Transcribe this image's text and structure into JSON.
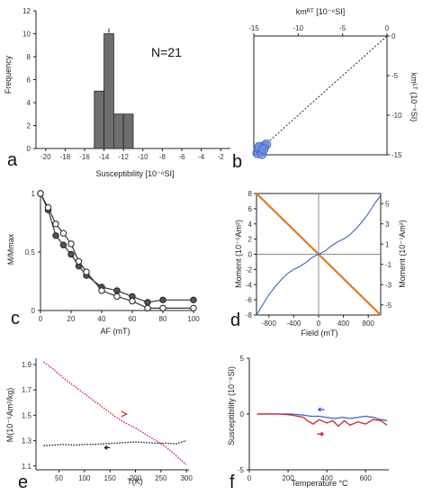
{
  "colors": {
    "axis": "#222222",
    "bar": "#6e6e6e",
    "diag": "#222222",
    "blue": "#3a62c9",
    "blue_light": "#6f8fe0",
    "orange": "#e07a1f",
    "red": "#c8262a",
    "black": "#1a1a1a",
    "grey_line": "#8a8a8a"
  },
  "chart_data": [
    {
      "panel": "a",
      "type": "bar",
      "annotation": "N=21",
      "xlabel": "Susceptibility [10⁻⁶SI]",
      "ylabel": "Frequency",
      "xlim": [
        -21,
        -1
      ],
      "ylim": [
        0,
        12
      ],
      "xticks": [
        "-20",
        "-18",
        "-16",
        "-14",
        "-12",
        "-10",
        "-8",
        "-6",
        "-4",
        "-2"
      ],
      "yticks": [
        "0",
        "2",
        "4",
        "6",
        "8",
        "10",
        "12"
      ],
      "bins": [
        {
          "x0": -15,
          "x1": -14,
          "value": 5
        },
        {
          "x0": -14,
          "x1": -13,
          "value": 10
        },
        {
          "x0": -13,
          "x1": -12,
          "value": 3
        },
        {
          "x0": -12,
          "x1": -11,
          "value": 3
        }
      ],
      "mean_marker": -13.5
    },
    {
      "panel": "b",
      "type": "scatter",
      "xlabel": "kmᴿᵀ [10⁻⁶SI]",
      "ylabel": "kmᴸᵀ (10⁻⁶SI)",
      "xlim": [
        -15,
        0
      ],
      "ylim": [
        -15,
        0
      ],
      "xticks": [
        "-15",
        "-10",
        "-5",
        "0"
      ],
      "yticks": [
        "0",
        "-5",
        "-10",
        "-15"
      ],
      "points": [
        [
          -14.6,
          -14.8
        ],
        [
          -14.3,
          -14.4
        ],
        [
          -14.0,
          -14.1
        ],
        [
          -13.8,
          -13.9
        ],
        [
          -14.2,
          -14.6
        ],
        [
          -14.5,
          -14.2
        ],
        [
          -13.6,
          -13.7
        ],
        [
          -14.1,
          -14.9
        ],
        [
          -14.4,
          -14.0
        ],
        [
          -13.9,
          -14.3
        ]
      ],
      "reference": "1:1 line"
    },
    {
      "panel": "c",
      "type": "line",
      "xlabel": "AF (mT)",
      "ylabel": "M/Mmax",
      "xlim": [
        0,
        100
      ],
      "ylim": [
        0,
        1
      ],
      "xticks": [
        "0",
        "20",
        "40",
        "60",
        "80",
        "100"
      ],
      "yticks": [
        "0",
        "0.5",
        "1"
      ],
      "series": [
        {
          "marker": "filled",
          "x": [
            0,
            5,
            10,
            15,
            20,
            25,
            30,
            40,
            50,
            60,
            70,
            80,
            100
          ],
          "y": [
            1.0,
            0.86,
            0.64,
            0.56,
            0.48,
            0.38,
            0.3,
            0.2,
            0.17,
            0.12,
            0.07,
            0.09,
            0.09
          ]
        },
        {
          "marker": "open",
          "x": [
            0,
            5,
            10,
            15,
            20,
            25,
            30,
            40,
            50,
            60,
            70,
            80,
            100
          ],
          "y": [
            1.0,
            0.88,
            0.74,
            0.66,
            0.57,
            0.42,
            0.33,
            0.17,
            0.12,
            0.08,
            0.02,
            0.02,
            0.02
          ]
        }
      ]
    },
    {
      "panel": "d",
      "type": "line",
      "xlabel": "Field (mT)",
      "ylabel_left": "Moment (10⁻⁵Am²)",
      "ylabel_right": "Moment (10⁻⁷Am²)",
      "xlim": [
        -1000,
        1000
      ],
      "ylim_left": [
        -8,
        8
      ],
      "ylim_right": [
        -6,
        6
      ],
      "xticks": [
        "-800",
        "-400",
        "0",
        "400",
        "800"
      ],
      "yticks_left": [
        "8",
        "6",
        "4",
        "2",
        "0",
        "-2",
        "-4",
        "-6",
        "-8"
      ],
      "yticks_right": [
        "5",
        "3",
        "1",
        "-1",
        "-3",
        "-5"
      ],
      "series": [
        {
          "axis": "left",
          "x": [
            -1000,
            1000
          ],
          "y": [
            8,
            -8
          ]
        },
        {
          "axis": "right",
          "x": [
            -1000,
            -900,
            -800,
            -700,
            -600,
            -500,
            -400,
            -300,
            -200,
            -100,
            0,
            100,
            200,
            300,
            400,
            500,
            600,
            700,
            800,
            900,
            1000
          ],
          "y": [
            -6.0,
            -5.0,
            -4.0,
            -3.2,
            -2.5,
            -1.9,
            -1.5,
            -1.2,
            -0.8,
            -0.3,
            0.0,
            0.3,
            0.8,
            1.2,
            1.5,
            1.9,
            2.5,
            3.2,
            4.0,
            5.0,
            5.8
          ]
        }
      ]
    },
    {
      "panel": "e",
      "type": "line",
      "xlabel": "T(K)",
      "ylabel": "M(10⁻⁵Am²/kg)",
      "xlim": [
        5,
        305
      ],
      "ylim": [
        1.07,
        1.95
      ],
      "xticks": [
        "50",
        "100",
        "150",
        "200",
        "250",
        "300"
      ],
      "yticks": [
        "1.9",
        "1.7",
        "1.5",
        "1.3",
        "1.1"
      ],
      "series": [
        {
          "color": "red",
          "x": [
            20,
            40,
            60,
            80,
            100,
            120,
            140,
            160,
            180,
            200,
            220,
            240,
            260,
            280,
            300
          ],
          "y": [
            1.92,
            1.86,
            1.79,
            1.73,
            1.67,
            1.61,
            1.55,
            1.49,
            1.44,
            1.4,
            1.35,
            1.3,
            1.25,
            1.18,
            1.11
          ]
        },
        {
          "color": "black",
          "x": [
            20,
            40,
            60,
            80,
            100,
            120,
            140,
            160,
            180,
            200,
            220,
            240,
            260,
            280,
            300
          ],
          "y": [
            1.26,
            1.265,
            1.27,
            1.265,
            1.27,
            1.27,
            1.275,
            1.28,
            1.285,
            1.29,
            1.285,
            1.28,
            1.28,
            1.275,
            1.3
          ]
        }
      ]
    },
    {
      "panel": "f",
      "type": "line",
      "xlabel": "Temperature °C",
      "ylabel": "Susceptibility (10⁻⁶SI)",
      "xlim": [
        0,
        720
      ],
      "ylim": [
        -5,
        5
      ],
      "xticks": [
        "0",
        "200",
        "400",
        "600"
      ],
      "yticks": [
        "5",
        "0",
        "-5"
      ],
      "series": [
        {
          "color": "blue",
          "x": [
            40,
            100,
            160,
            220,
            280,
            320,
            360,
            400,
            440,
            480,
            520,
            560,
            600,
            640,
            680,
            710
          ],
          "y": [
            0,
            0,
            0,
            0,
            -0.1,
            -0.2,
            -0.2,
            -0.3,
            -0.4,
            -0.3,
            -0.4,
            -0.3,
            -0.2,
            -0.3,
            -0.5,
            -0.6
          ]
        },
        {
          "color": "red",
          "x": [
            40,
            100,
            160,
            220,
            280,
            300,
            330,
            360,
            400,
            430,
            460,
            490,
            520,
            560,
            600,
            640,
            680,
            710
          ],
          "y": [
            0,
            0,
            0,
            -0.1,
            -0.3,
            -0.6,
            -0.9,
            -0.5,
            -0.8,
            -0.6,
            -1.1,
            -0.6,
            -1.0,
            -0.7,
            -0.9,
            -0.5,
            -0.6,
            -1.0
          ]
        }
      ]
    }
  ]
}
